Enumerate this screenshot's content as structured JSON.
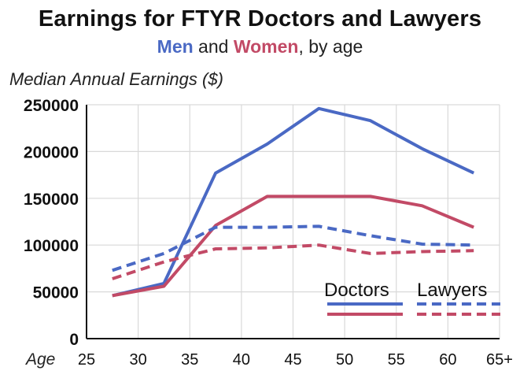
{
  "title": "Earnings for FTYR Doctors and Lawyers",
  "subtitle": {
    "men": "Men",
    "and": " and ",
    "women": "Women",
    "rest": ", by age"
  },
  "colors": {
    "men": "#4a69c4",
    "women": "#c24a66",
    "grid": "#d9d9d9",
    "axis": "#111111"
  },
  "chart_data": {
    "type": "line",
    "title": "Earnings for FTYR Doctors and Lawyers",
    "subtitle": "Men and Women, by age",
    "ylabel": "Median Annual Earnings ($)",
    "xlabel": "Age",
    "x_ticks": [
      "25",
      "30",
      "35",
      "40",
      "45",
      "50",
      "55",
      "60",
      "65+"
    ],
    "y_ticks": [
      "0",
      "50000",
      "100000",
      "150000",
      "200000",
      "250000"
    ],
    "xlim": [
      25,
      65
    ],
    "ylim": [
      0,
      250000
    ],
    "grid": true,
    "legend": {
      "position": "bottom-right",
      "headers": [
        "Doctors",
        "Lawyers"
      ],
      "styles": [
        "solid",
        "dashed"
      ]
    },
    "series": [
      {
        "name": "Doctors",
        "group": "men",
        "style": "solid",
        "x": [
          27.5,
          32.5,
          37.5,
          42.5,
          47.5,
          52.5,
          57.5,
          62.5
        ],
        "values": [
          46000,
          59000,
          177000,
          208000,
          246000,
          233000,
          203000,
          177000
        ]
      },
      {
        "name": "Doctors",
        "group": "women",
        "style": "solid",
        "x": [
          27.5,
          32.5,
          37.5,
          42.5,
          47.5,
          52.5,
          57.5,
          62.5
        ],
        "values": [
          46000,
          56000,
          121000,
          152000,
          152000,
          152000,
          142000,
          119000
        ]
      },
      {
        "name": "Lawyers",
        "group": "men",
        "style": "dashed",
        "x": [
          27.5,
          32.5,
          37.5,
          42.5,
          47.5,
          52.5,
          57.5,
          62.5
        ],
        "values": [
          73000,
          91000,
          119000,
          119000,
          120000,
          110000,
          101000,
          100000
        ]
      },
      {
        "name": "Lawyers",
        "group": "women",
        "style": "dashed",
        "x": [
          27.5,
          32.5,
          37.5,
          42.5,
          47.5,
          52.5,
          57.5,
          62.5
        ],
        "values": [
          64000,
          82000,
          96000,
          97000,
          100000,
          91000,
          93000,
          94000
        ]
      }
    ]
  }
}
